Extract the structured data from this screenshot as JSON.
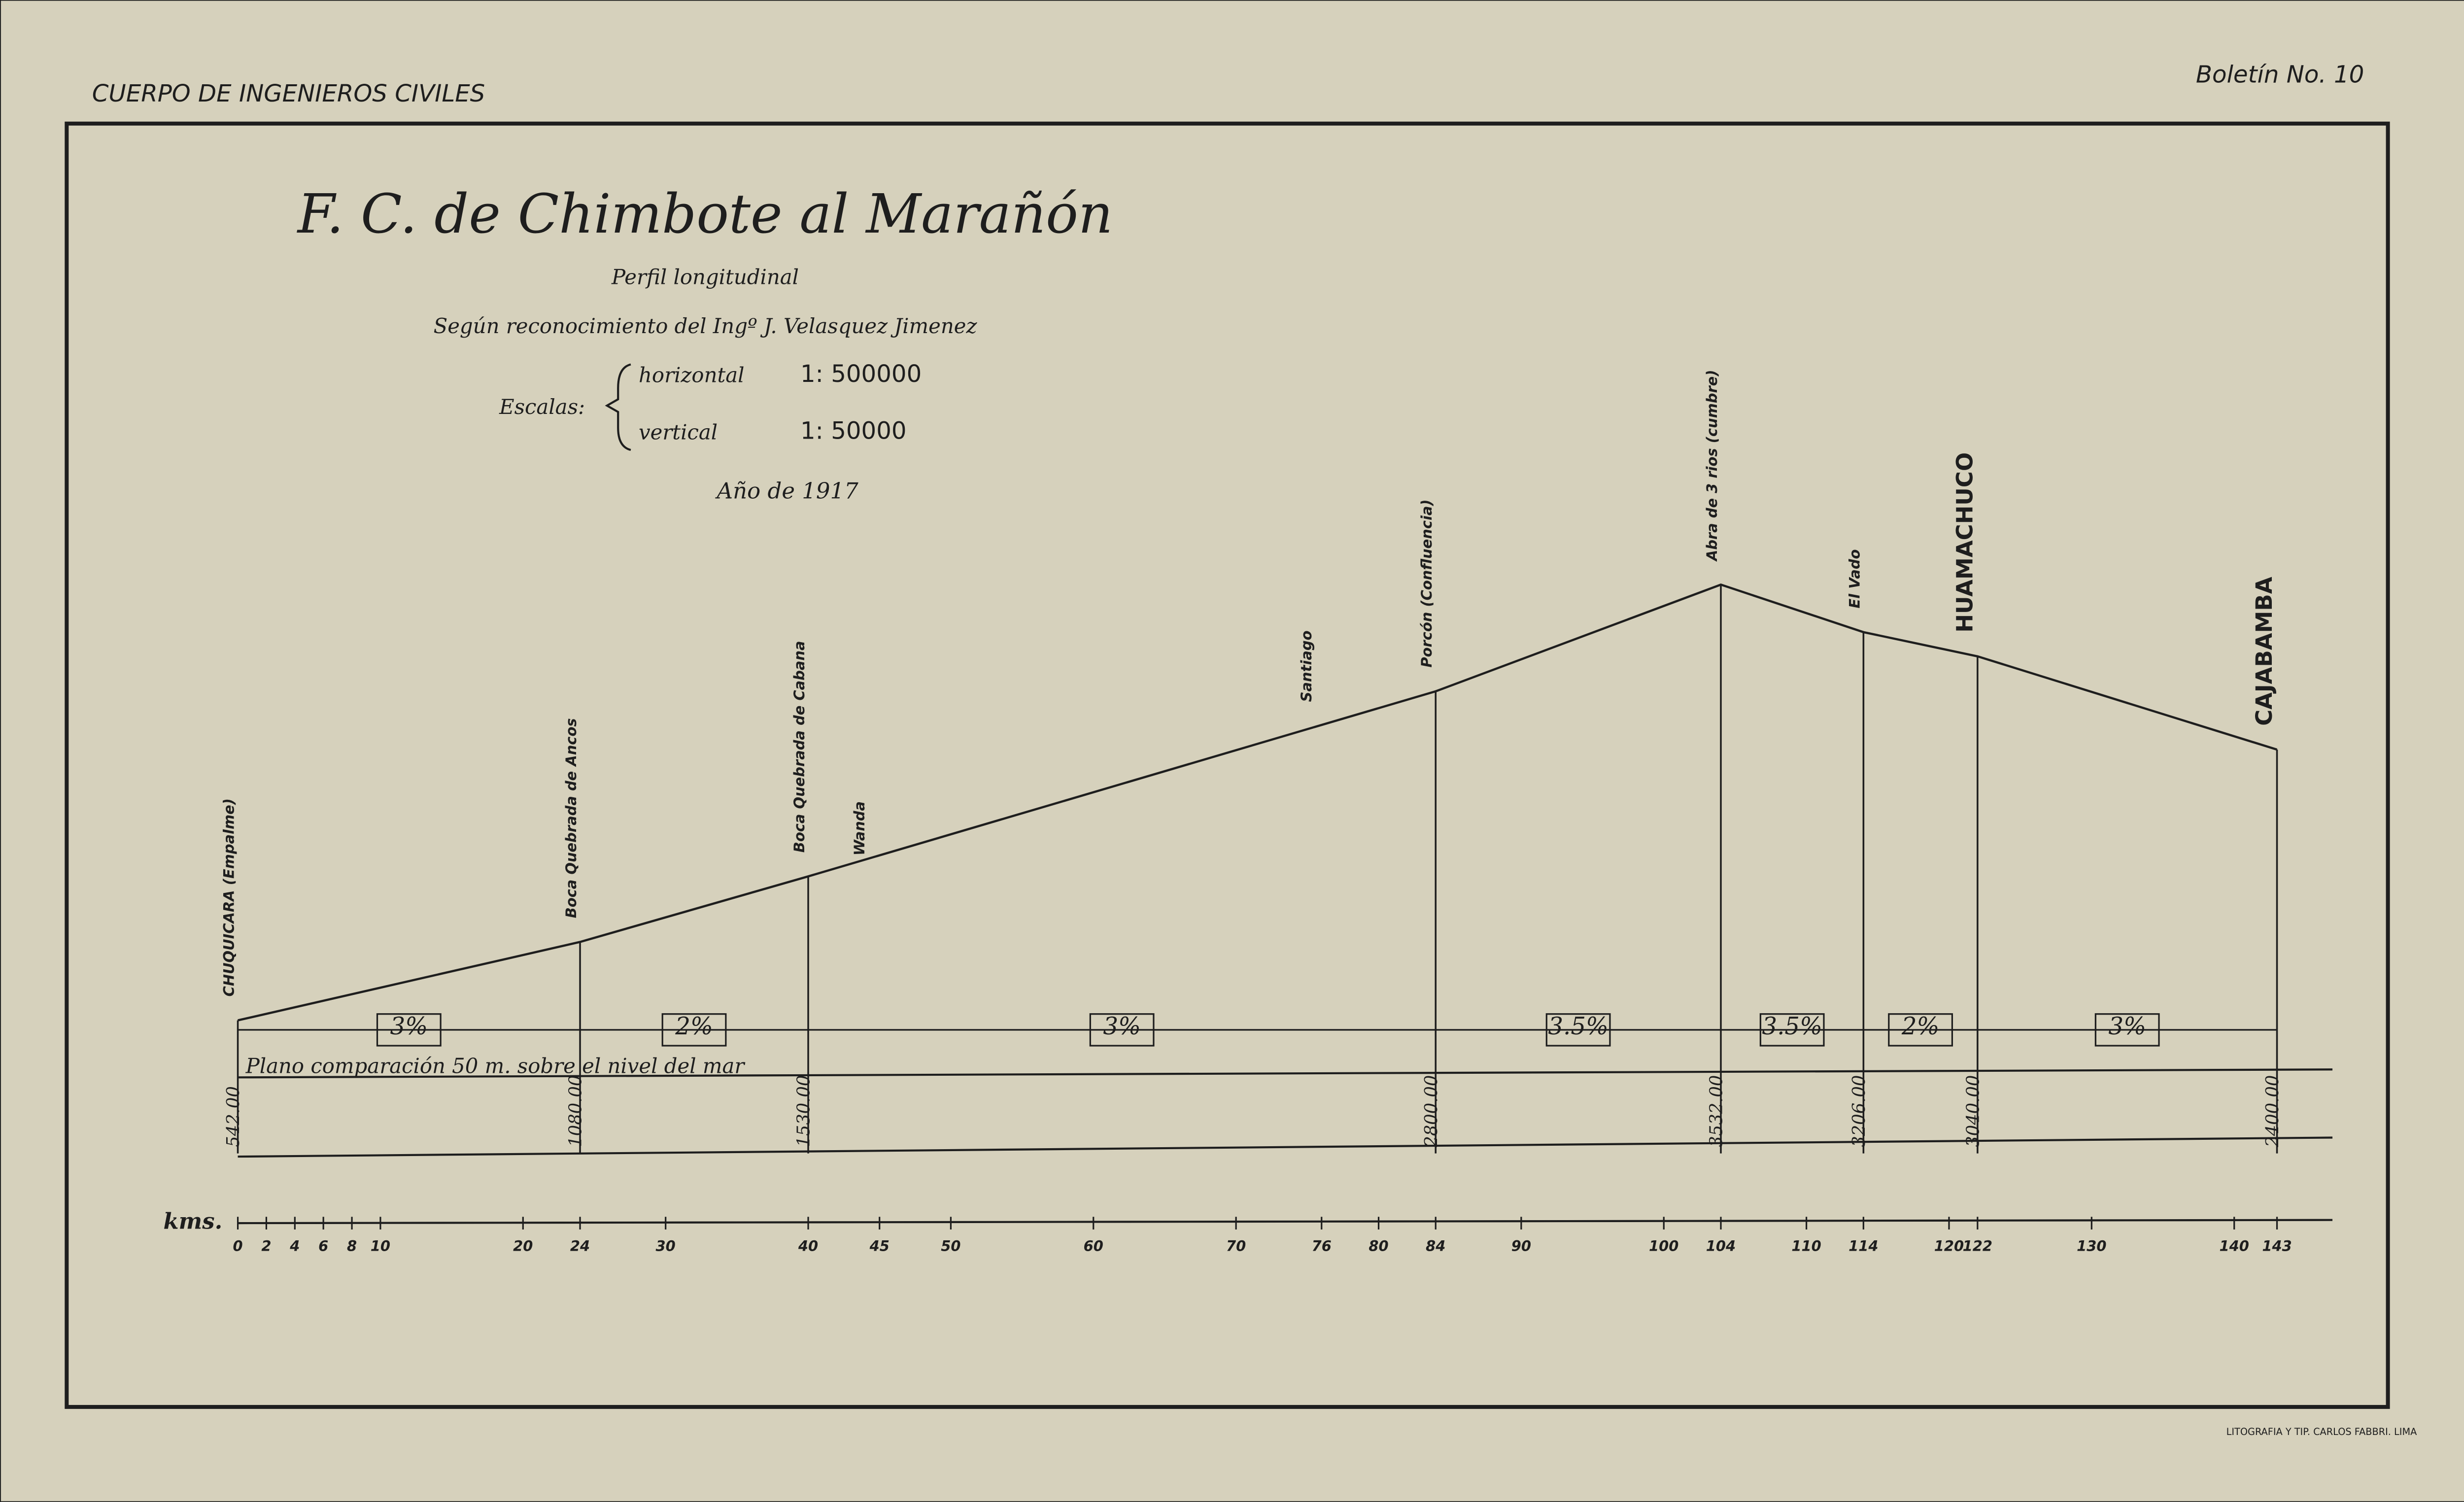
{
  "header": {
    "left": "CUERPO DE INGENIEROS CIVILES",
    "right": "Boletín No. 10"
  },
  "chart_data": {
    "type": "line",
    "title": "F. C. de Chimbote al Marañón",
    "subtitle": "Perfil longitudinal",
    "author": "Según reconocimiento del Ingº J. Velasquez Jimenez",
    "scales": {
      "label": "Escalas:",
      "horizontal": "horizontal",
      "horizontal_ratio": "1: 500000",
      "vertical": "vertical",
      "vertical_ratio": "1: 50000"
    },
    "year": "Año de 1917",
    "x": [
      0,
      24,
      40,
      84,
      104,
      114,
      122,
      143
    ],
    "stations": [
      "CHUQUICARA (Empalme)",
      "Boca Quebrada de Ancos",
      "Boca Quebrada de Cabana",
      "Porcón (Confluencia)",
      "Abra de 3 rios (cumbre)",
      "El Vado",
      "HUAMACHUCO",
      "CAJABAMBA"
    ],
    "values": [
      542,
      1080,
      1530,
      2800,
      3532,
      3206,
      3040,
      2400
    ],
    "value_labels": [
      "542.00",
      "1080.00",
      "1530.00",
      "2800.00",
      "3532.00",
      "3206.00",
      "3040.00",
      "2400.00"
    ],
    "grades": [
      "3%",
      "2%",
      "3%",
      "3.5%",
      "3.5%",
      "2%",
      "3%"
    ],
    "other_stations": [
      "Wanda",
      "Santiago"
    ],
    "datum": "Plano comparación 50 m. sobre el nivel del mar",
    "xlabel": "kms.",
    "xlim": [
      0,
      143
    ],
    "xticks": [
      0,
      2,
      4,
      6,
      8,
      10,
      20,
      24,
      30,
      40,
      45,
      50,
      60,
      70,
      76,
      80,
      84,
      90,
      100,
      104,
      110,
      114,
      120,
      122,
      130,
      140,
      143
    ],
    "color": "#1e1e1e"
  },
  "footer": "LITOGRAFIA Y TIP. CARLOS FABBRI. LIMA"
}
